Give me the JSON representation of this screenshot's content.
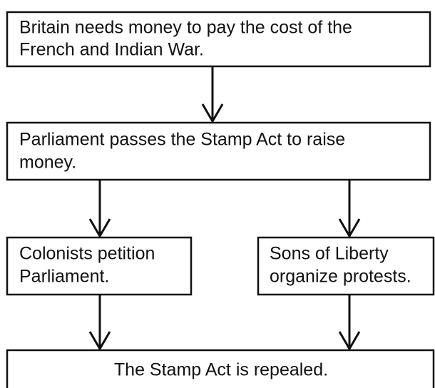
{
  "nodes": [
    {
      "lines": [
        "Britain needs money to pay the cost of the",
        "French and Indian War."
      ]
    },
    {
      "lines": [
        "Parliament passes the Stamp Act to raise",
        "money."
      ]
    },
    {
      "lines": [
        "Colonists petition",
        "Parliament."
      ]
    },
    {
      "lines": [
        "Sons of Liberty",
        "organize protests."
      ]
    },
    {
      "lines": [
        "The Stamp Act is repealed."
      ]
    }
  ]
}
